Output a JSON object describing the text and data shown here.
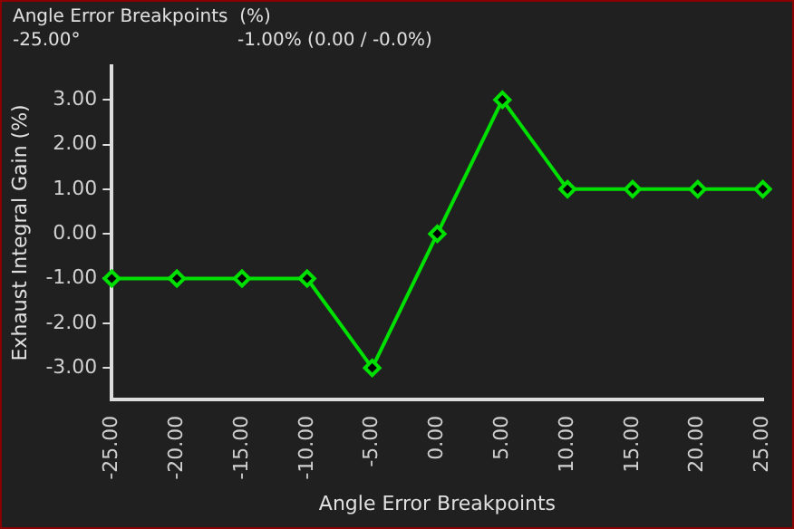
{
  "chart_data": {
    "type": "line",
    "xlabel": "Angle Error Breakpoints",
    "ylabel": "Exhaust Integral Gain (%)",
    "annotations": [
      "Angle Error Breakpoints  (%)",
      "-25.00°",
      "-1.00% (0.00 / -0.0%)"
    ],
    "categories": [
      "-25.00",
      "-20.00",
      "-15.00",
      "-10.00",
      "-5.00",
      "0.00",
      "5.00",
      "10.00",
      "15.00",
      "20.00",
      "25.00"
    ],
    "series": [
      {
        "color": "#00e000",
        "values": [
          -1,
          -1,
          -1,
          -1,
          -3,
          0,
          3,
          1,
          1,
          1,
          1
        ]
      }
    ],
    "ylim": [
      -3.7,
      3.75
    ],
    "yticks": [
      {
        "value": -3,
        "label": "-3.00"
      },
      {
        "value": -2,
        "label": "-2.00"
      },
      {
        "value": -1,
        "label": "-1.00"
      },
      {
        "value": 0,
        "label": "0.00"
      },
      {
        "value": 1,
        "label": "1.00"
      },
      {
        "value": 2,
        "label": "2.00"
      },
      {
        "value": 3,
        "label": "3.00"
      }
    ],
    "grid": false,
    "legend": false,
    "marker": "diamond",
    "line_style": "solid"
  }
}
